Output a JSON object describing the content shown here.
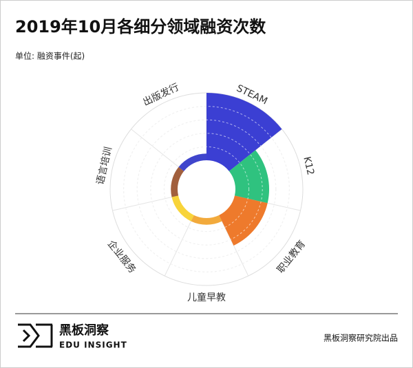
{
  "chart_data": {
    "type": "polar-bar",
    "title": "2019年10月各细分领域融资次数",
    "subtitle": "单位: 融资事件(起)",
    "categories": [
      "STEAM",
      "K12",
      "职业教育",
      "儿童早教",
      "企业服务",
      "语言培训",
      "出版发行"
    ],
    "values": [
      10,
      5,
      5,
      1,
      1,
      1,
      1
    ],
    "colors": [
      "#3b3fd3",
      "#2fc27f",
      "#ee7a2c",
      "#f2aa3c",
      "#f8d43a",
      "#a15f3d",
      "#3f45cc"
    ],
    "ylim": [
      0,
      10
    ]
  },
  "footer": {
    "brand": "黑板洞察",
    "brand_en": "EDU INSIGHT",
    "credit": "黑板洞察研究院出品"
  }
}
